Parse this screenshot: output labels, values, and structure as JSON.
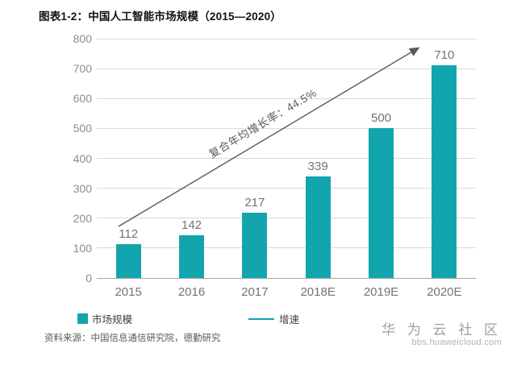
{
  "title": "图表1-2：中国人工智能市场规模（2015—2020）",
  "colors": {
    "bar": "#12a5ad",
    "trend_line": "#595959",
    "grid": "#d9d9d9",
    "axis": "#a6a6a6"
  },
  "chart_data": {
    "type": "bar",
    "title": "图表1-2：中国人工智能市场规模（2015—2020）",
    "categories": [
      "2015",
      "2016",
      "2017",
      "2018E",
      "2019E",
      "2020E"
    ],
    "values": [
      112,
      142,
      217,
      339,
      500,
      710
    ],
    "xlabel": "",
    "ylabel": "",
    "ylim": [
      0,
      800
    ],
    "ytick_step": 100,
    "grid": true,
    "bar_color": "#12a5ad",
    "annotation": "复合年均增长率：44.5%",
    "legend_position": "bottom",
    "legend": [
      {
        "label": "市场规模",
        "type": "square",
        "color": "#12a5ad"
      },
      {
        "label": "增速",
        "type": "line",
        "color": "#12a5ad"
      }
    ]
  },
  "legend": {
    "series1_label": "市场规模",
    "series2_label": "增速"
  },
  "source_note": "资料来源：中国信息通信研究院，德勤研究",
  "watermark": {
    "name": "华 为 云 社 区",
    "url": "bbs.huaweicloud.com"
  }
}
